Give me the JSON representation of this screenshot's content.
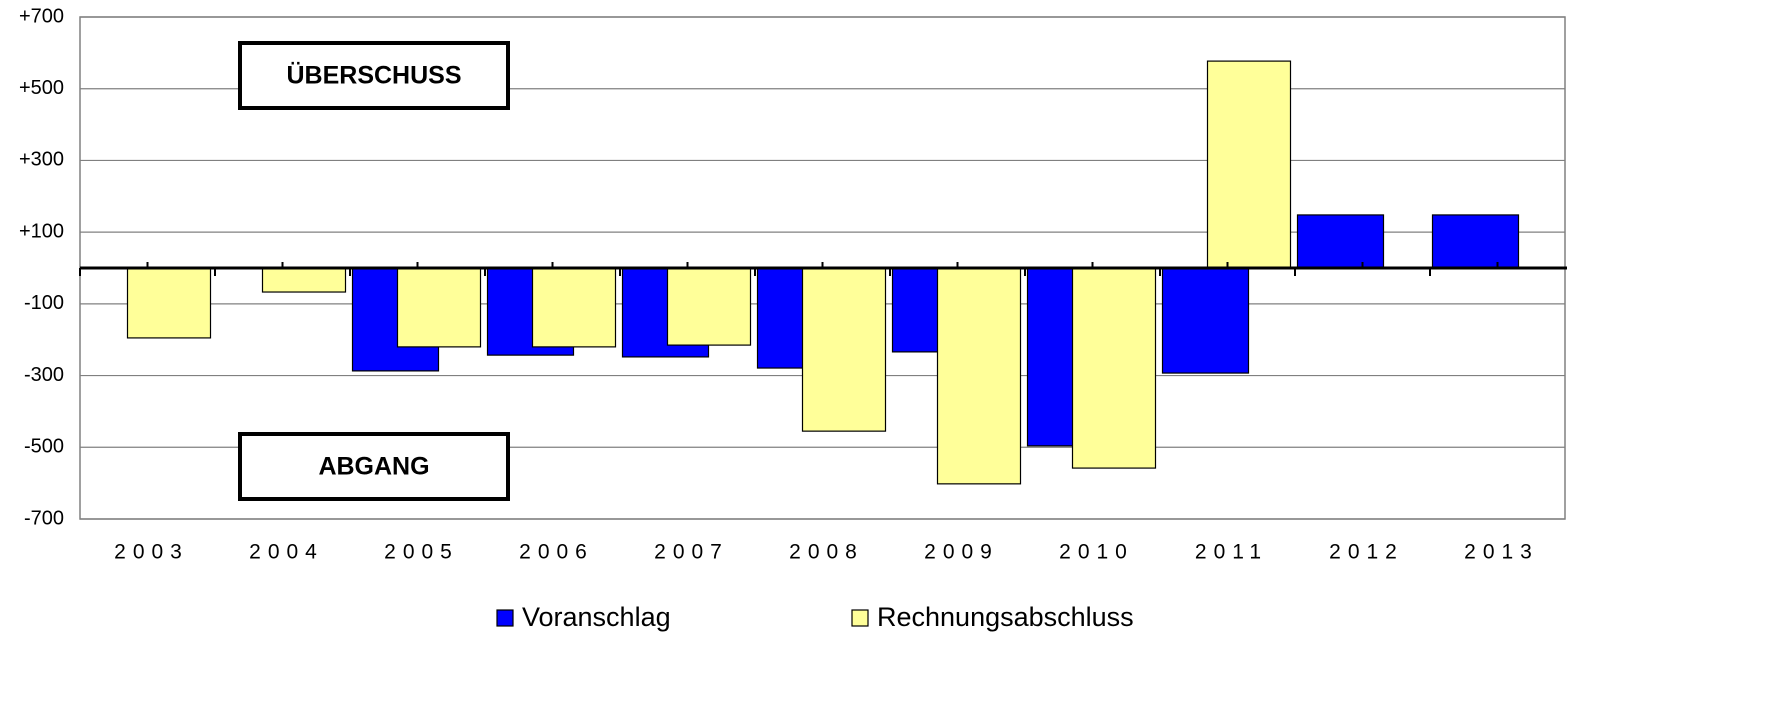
{
  "chart_data": {
    "type": "bar",
    "categories": [
      "2003",
      "2004",
      "2005",
      "2006",
      "2007",
      "2008",
      "2009",
      "2010",
      "2011",
      "2012",
      "2013"
    ],
    "series": [
      {
        "name": "Voranschlag",
        "color": "#0000ff",
        "values": [
          null,
          null,
          -287,
          -243,
          -248,
          -279,
          -234,
          -496,
          -293,
          148,
          148
        ]
      },
      {
        "name": "Rechnungsabschluss",
        "color": "#ffff99",
        "values": [
          -195,
          -67,
          -220,
          -220,
          -215,
          -455,
          -602,
          -558,
          577,
          null,
          null
        ]
      }
    ],
    "ylim": [
      -700,
      700
    ],
    "yticks": [
      -700,
      -500,
      -300,
      -100,
      {
        "value": 100,
        "label": "+100"
      },
      {
        "value": 300,
        "label": "+300"
      },
      {
        "value": 500,
        "label": "+500"
      },
      {
        "value": 700,
        "label": "+700"
      }
    ],
    "grid": true,
    "annotations": [
      "ÜBERSCHUSS",
      "ABGANG"
    ],
    "legend": "bottom"
  }
}
